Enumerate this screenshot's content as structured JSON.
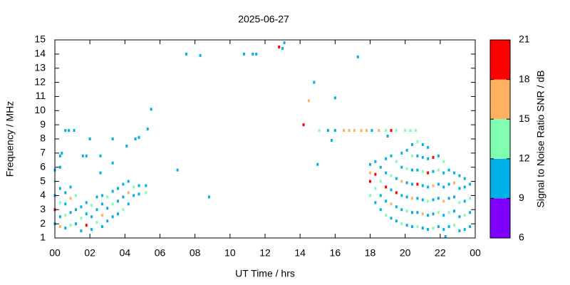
{
  "chart_data": {
    "type": "scatter",
    "title": "2025-06-27",
    "x_label": "UT Time / hrs",
    "y_label": "Frequency / MHz",
    "colorbar_label": "Signal to Noise Ratio SNR / dB",
    "xlim": [
      0,
      24
    ],
    "ylim": [
      1,
      15
    ],
    "xticks": [
      {
        "value": 0,
        "label": "00"
      },
      {
        "value": 2,
        "label": "02"
      },
      {
        "value": 4,
        "label": "04"
      },
      {
        "value": 6,
        "label": "06"
      },
      {
        "value": 8,
        "label": "08"
      },
      10,
      12,
      14,
      16,
      18,
      20,
      22,
      {
        "value": 24,
        "label": "00"
      }
    ],
    "yticks": [
      1,
      2,
      3,
      4,
      5,
      6,
      7,
      8,
      9,
      10,
      11,
      12,
      13,
      14,
      15
    ],
    "clim": [
      6,
      21
    ],
    "cticks": [
      6,
      9,
      12,
      15,
      18,
      21
    ],
    "colors": [
      "#8000ff",
      "#00b0e8",
      "#80ffb0",
      "#ffb060",
      "#ff0000"
    ],
    "x": [
      0,
      0,
      0,
      0,
      0,
      0.3,
      0.3,
      0.3,
      0.3,
      0.3,
      0.6,
      0.6,
      0.6,
      0.6,
      0.9,
      0.9,
      0.9,
      0.9,
      1.2,
      1.2,
      1.2,
      1.5,
      1.5,
      1.5,
      1.8,
      1.8,
      1.8,
      2.1,
      2.1,
      2.1,
      2.4,
      2.4,
      2.4,
      2.7,
      2.7,
      2.7,
      2.7,
      3.0,
      3.0,
      3.0,
      3.3,
      3.3,
      3.3,
      3.6,
      3.6,
      3.6,
      3.9,
      3.9,
      3.9,
      4.2,
      4.2,
      4.2,
      4.5,
      4.5,
      4.8,
      4.8,
      5.2,
      5.2,
      18.0,
      18.0,
      18.0,
      18.0,
      18.3,
      18.3,
      18.3,
      18.3,
      18.6,
      18.6,
      18.6,
      18.6,
      18.9,
      18.9,
      18.9,
      18.9,
      18.9,
      19.2,
      19.2,
      19.2,
      19.2,
      19.2,
      19.5,
      19.5,
      19.5,
      19.5,
      19.5,
      19.8,
      19.8,
      19.8,
      19.8,
      19.8,
      19.8,
      20.1,
      20.1,
      20.1,
      20.1,
      20.1,
      20.1,
      20.4,
      20.4,
      20.4,
      20.4,
      20.4,
      20.4,
      20.4,
      20.7,
      20.7,
      20.7,
      20.7,
      20.7,
      20.7,
      20.7,
      21.0,
      21.0,
      21.0,
      21.0,
      21.0,
      21.0,
      21.0,
      21.3,
      21.3,
      21.3,
      21.3,
      21.3,
      21.3,
      21.3,
      21.6,
      21.6,
      21.6,
      21.6,
      21.6,
      21.6,
      21.9,
      21.9,
      21.9,
      21.9,
      21.9,
      21.9,
      22.2,
      22.2,
      22.2,
      22.2,
      22.2,
      22.2,
      22.5,
      22.5,
      22.5,
      22.5,
      22.5,
      22.8,
      22.8,
      22.8,
      22.8,
      22.8,
      23.1,
      23.1,
      23.1,
      23.1,
      23.1,
      23.4,
      23.4,
      23.4,
      23.4,
      23.4,
      23.7,
      23.7,
      23.7,
      23.7,
      0.3,
      0.4,
      0.6,
      0.8,
      1.1,
      1.6,
      1.8,
      2.0,
      2.6,
      2.6,
      3.3,
      3.3,
      4.1,
      4.6,
      4.8,
      5.3,
      5.5,
      7.0,
      7.5,
      8.3,
      8.8,
      10.8,
      11.3,
      11.5,
      12.8,
      13.0,
      13.1,
      14.2,
      14.5,
      14.8,
      15.0,
      15.1,
      15.6,
      15.8,
      16.0,
      16.0,
      16.5,
      16.8,
      17.1,
      17.3,
      17.5,
      17.8,
      18.1,
      18.5,
      18.9,
      19.0,
      19.2,
      19.5,
      20.0,
      20.3,
      20.6,
      22.3
    ],
    "values": [
      2.0,
      3.0,
      4.0,
      5.0,
      5.8,
      1.8,
      2.5,
      3.5,
      4.5,
      6.0,
      1.7,
      2.6,
      3.4,
      4.2,
      1.9,
      2.8,
      3.8,
      4.6,
      2.0,
      3.0,
      4.0,
      1.5,
      2.4,
      3.2,
      1.9,
      2.7,
      3.5,
      1.6,
      2.5,
      3.3,
      2.1,
      3.0,
      3.9,
      1.8,
      2.6,
      3.4,
      4.0,
      2.2,
      3.1,
      3.9,
      2.5,
      3.4,
      4.3,
      2.7,
      3.6,
      4.5,
      3.0,
      3.9,
      4.8,
      3.4,
      4.2,
      5.0,
      4.0,
      4.6,
      4.1,
      4.7,
      4.2,
      4.7,
      4.0,
      5.0,
      5.6,
      6.2,
      3.5,
      4.5,
      5.5,
      6.4,
      3.0,
      4.0,
      5.0,
      6.0,
      2.6,
      3.6,
      4.6,
      5.6,
      6.6,
      2.4,
      3.4,
      4.4,
      5.4,
      6.8,
      2.2,
      3.2,
      4.2,
      5.2,
      6.4,
      2.0,
      3.0,
      4.0,
      5.0,
      6.0,
      7.0,
      1.9,
      2.9,
      3.9,
      4.9,
      5.9,
      7.2,
      1.8,
      2.8,
      3.8,
      4.8,
      5.8,
      6.8,
      7.6,
      1.8,
      2.8,
      3.8,
      4.8,
      5.8,
      6.8,
      7.8,
      1.7,
      2.7,
      3.7,
      4.7,
      5.7,
      6.7,
      7.6,
      1.6,
      2.6,
      3.6,
      4.6,
      5.6,
      6.6,
      7.4,
      1.7,
      2.7,
      3.7,
      4.7,
      5.7,
      6.7,
      1.8,
      2.8,
      3.8,
      4.8,
      5.8,
      6.8,
      1.6,
      2.6,
      3.6,
      4.6,
      5.6,
      6.4,
      1.8,
      2.8,
      3.8,
      4.8,
      5.8,
      1.9,
      2.9,
      3.9,
      4.9,
      5.6,
      1.5,
      2.5,
      3.5,
      4.5,
      5.4,
      1.6,
      2.6,
      3.6,
      4.6,
      5.2,
      1.8,
      2.8,
      3.8,
      4.8,
      6.8,
      7.0,
      8.6,
      8.6,
      8.6,
      6.8,
      6.8,
      8.0,
      6.8,
      5.6,
      8.0,
      6.3,
      7.5,
      8.0,
      8.1,
      8.7,
      10.1,
      5.8,
      14.0,
      13.9,
      3.9,
      14.0,
      14.0,
      14.0,
      14.5,
      14.4,
      14.8,
      9.0,
      10.7,
      12.0,
      6.2,
      8.6,
      8.6,
      7.9,
      8.6,
      10.9,
      8.6,
      8.6,
      8.6,
      13.8,
      8.6,
      8.6,
      8.6,
      8.6,
      8.6,
      8.2,
      8.6,
      8.6,
      8.6,
      8.6,
      8.6,
      1.1
    ],
    "snr": [
      10,
      19,
      10,
      13,
      10,
      16,
      10,
      13,
      10,
      10,
      10,
      13,
      10,
      10,
      13,
      10,
      16,
      10,
      10,
      10,
      13,
      10,
      13,
      10,
      19,
      10,
      10,
      10,
      10,
      13,
      13,
      10,
      10,
      10,
      16,
      10,
      10,
      10,
      10,
      13,
      10,
      13,
      10,
      10,
      10,
      10,
      13,
      10,
      10,
      10,
      16,
      10,
      10,
      13,
      10,
      10,
      13,
      10,
      13,
      19,
      16,
      10,
      10,
      13,
      19,
      10,
      10,
      10,
      13,
      10,
      13,
      10,
      19,
      10,
      10,
      10,
      16,
      10,
      13,
      10,
      10,
      10,
      19,
      10,
      13,
      13,
      10,
      10,
      16,
      10,
      10,
      10,
      13,
      10,
      10,
      13,
      10,
      10,
      10,
      16,
      10,
      10,
      13,
      10,
      13,
      10,
      10,
      19,
      10,
      10,
      13,
      10,
      16,
      10,
      10,
      13,
      10,
      10,
      10,
      10,
      13,
      10,
      19,
      10,
      10,
      13,
      10,
      10,
      16,
      10,
      19,
      10,
      13,
      10,
      10,
      13,
      10,
      10,
      10,
      16,
      10,
      10,
      13,
      10,
      13,
      10,
      10,
      10,
      13,
      10,
      10,
      16,
      10,
      10,
      10,
      13,
      10,
      10,
      10,
      13,
      10,
      10,
      10,
      10,
      10,
      13,
      10,
      10,
      10,
      10,
      10,
      10,
      10,
      10,
      10,
      10,
      10,
      10,
      10,
      10,
      10,
      10,
      10,
      10,
      10,
      10,
      10,
      10,
      10,
      10,
      10,
      20,
      10,
      10,
      20,
      16,
      10,
      10,
      13,
      10,
      10,
      10,
      10,
      16,
      16,
      16,
      10,
      16,
      16,
      10,
      16,
      13,
      10,
      20,
      13,
      13,
      13,
      13,
      10
    ]
  }
}
